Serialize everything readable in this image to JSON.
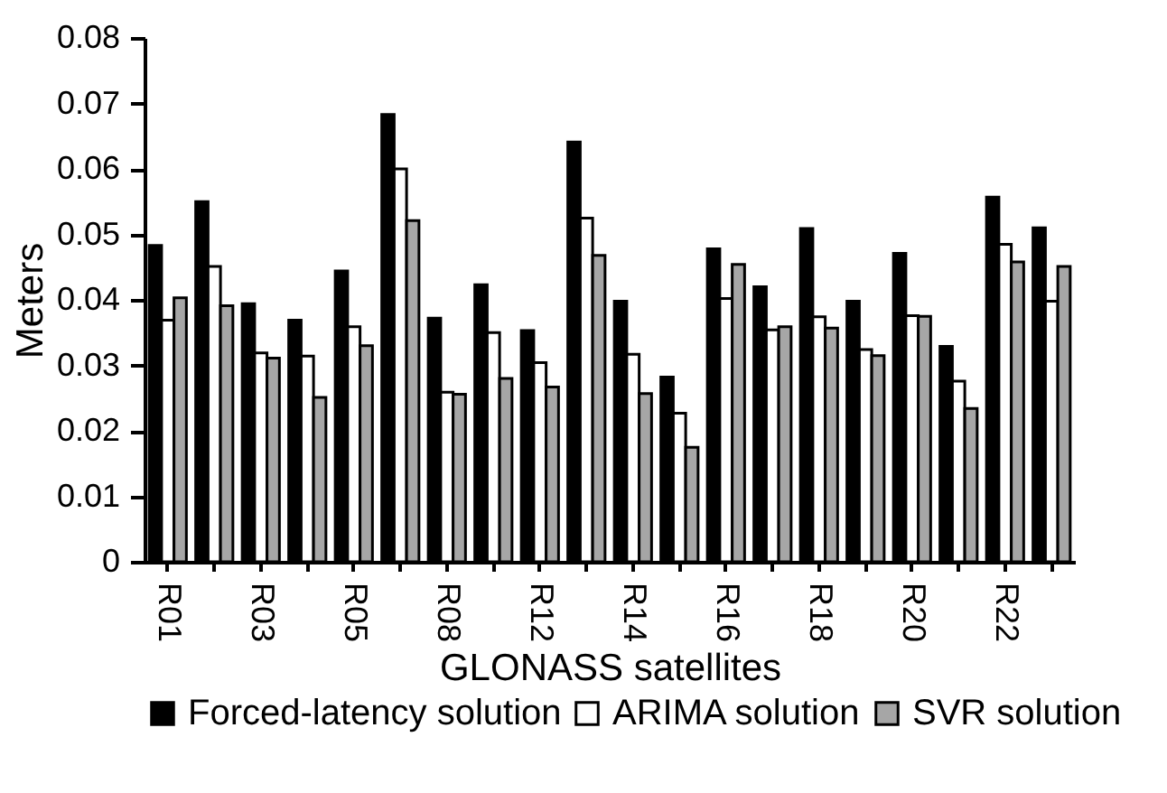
{
  "chart_data": {
    "type": "bar",
    "xlabel": "GLONASS satellites",
    "ylabel": "Meters",
    "categories": [
      "R01",
      null,
      "R03",
      null,
      "R05",
      null,
      "R08",
      null,
      "R12",
      null,
      "R14",
      null,
      "R16",
      null,
      "R18",
      null,
      "R20",
      null,
      "R22",
      null
    ],
    "series": [
      {
        "name": "Forced-latency solution",
        "color": "#000000",
        "values": [
          0.0483,
          0.055,
          0.0394,
          0.0369,
          0.0444,
          0.0683,
          0.0372,
          0.0423,
          0.0353,
          0.0641,
          0.0398,
          0.0282,
          0.0478,
          0.042,
          0.0509,
          0.0398,
          0.0471,
          0.0329,
          0.0557,
          0.051
        ]
      },
      {
        "name": "ARIMA solution",
        "color": "#ffffff",
        "values": [
          0.0369,
          0.0451,
          0.0319,
          0.0314,
          0.0359,
          0.06,
          0.0259,
          0.035,
          0.0304,
          0.0525,
          0.0317,
          0.0227,
          0.0402,
          0.0354,
          0.0374,
          0.0324,
          0.0376,
          0.0276,
          0.0485,
          0.0398
        ]
      },
      {
        "name": "SVR solution",
        "color": "#a6a6a6",
        "values": [
          0.0403,
          0.0391,
          0.0311,
          0.0251,
          0.033,
          0.0521,
          0.0256,
          0.028,
          0.0267,
          0.0468,
          0.0257,
          0.0175,
          0.0454,
          0.0359,
          0.0357,
          0.0315,
          0.0375,
          0.0234,
          0.0458,
          0.0451
        ]
      }
    ],
    "ylim": [
      0,
      0.08
    ],
    "yticks": [
      0,
      0.01,
      0.02,
      0.03,
      0.04,
      0.05,
      0.06,
      0.07,
      0.08
    ],
    "grid": false,
    "legend": "bottom"
  }
}
